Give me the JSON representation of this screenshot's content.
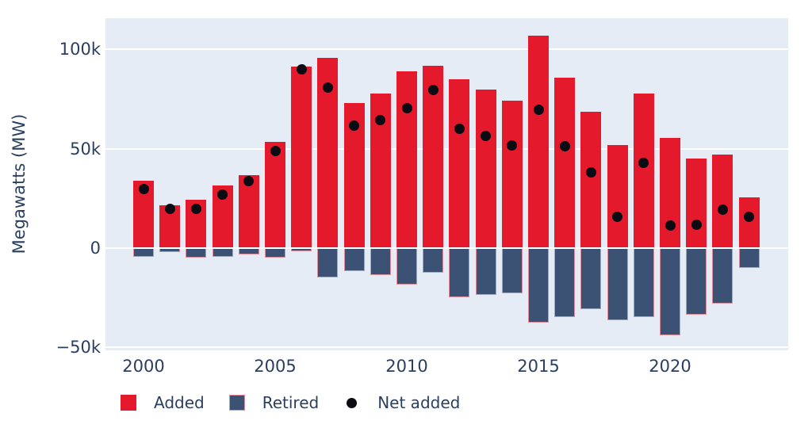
{
  "colors": {
    "added": "#e41a2c",
    "retired": "#3c5274",
    "retired_border": "#de8e9b",
    "net_dot": "#0b0b14",
    "plot_bg": "#e5ecf6",
    "grid": "#ffffff",
    "text": "#2a3f5f"
  },
  "chart_data": {
    "type": "bar",
    "mode": "stacked-relative bars with scatter overlay",
    "title": "",
    "xlabel": "",
    "ylabel": "Megawatts (MW)",
    "grid": true,
    "legend_position": "bottom",
    "ylim": [
      -51400,
      115600
    ],
    "x": [
      2000,
      2001,
      2002,
      2003,
      2004,
      2005,
      2006,
      2007,
      2008,
      2009,
      2010,
      2011,
      2012,
      2013,
      2014,
      2015,
      2016,
      2017,
      2018,
      2019,
      2020,
      2021,
      2022,
      2023
    ],
    "series": [
      {
        "name": "Added",
        "type": "bar",
        "color": "#e41a2c",
        "values": [
          34000,
          21600,
          24500,
          31500,
          36800,
          53600,
          91300,
          95500,
          72900,
          77800,
          89000,
          91800,
          84800,
          79900,
          74300,
          107000,
          85800,
          68600,
          51800,
          77600,
          55400,
          45200,
          47100,
          25700
        ]
      },
      {
        "name": "Retired",
        "type": "bar",
        "color": "#3c5274",
        "values": [
          -4300,
          -2000,
          -4700,
          -4500,
          -3200,
          -4600,
          -1500,
          -14600,
          -11500,
          -13400,
          -18500,
          -12400,
          -24800,
          -23400,
          -22700,
          -37300,
          -34600,
          -30700,
          -36200,
          -34600,
          -43900,
          -33300,
          -27800,
          -9900
        ]
      },
      {
        "name": "Net added",
        "type": "scatter",
        "color": "#0b0b14",
        "values": [
          29700,
          19600,
          19800,
          27000,
          33600,
          49000,
          89800,
          80900,
          61400,
          64400,
          70500,
          79400,
          60000,
          56500,
          51600,
          69700,
          51200,
          37900,
          15600,
          43000,
          11500,
          11900,
          19300,
          15800
        ]
      }
    ],
    "yticks": [
      {
        "label": "100k",
        "value": 100000
      },
      {
        "label": "50k",
        "value": 50000
      },
      {
        "label": "0",
        "value": 0
      },
      {
        "label": "−50k",
        "value": -50000
      }
    ],
    "xticks": [
      {
        "label": "2000",
        "value": 2000
      },
      {
        "label": "2005",
        "value": 2005
      },
      {
        "label": "2010",
        "value": 2010
      },
      {
        "label": "2015",
        "value": 2015
      },
      {
        "label": "2020",
        "value": 2020
      }
    ]
  },
  "legend": {
    "items": [
      {
        "label": "Added",
        "swatch": "square",
        "color": "#e41a2c"
      },
      {
        "label": "Retired",
        "swatch": "square",
        "color": "#3c5274"
      },
      {
        "label": "Net added",
        "swatch": "dot",
        "color": "#0b0b14"
      }
    ]
  }
}
